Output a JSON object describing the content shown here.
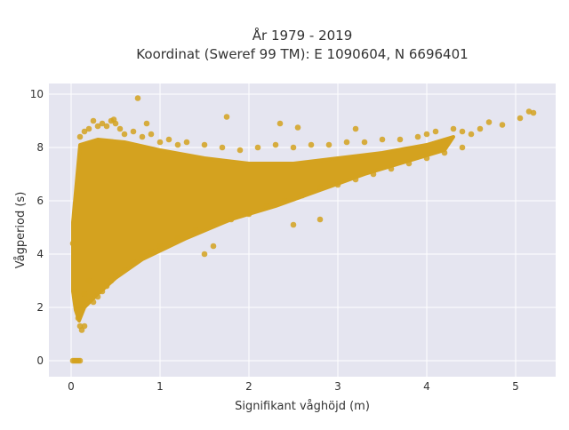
{
  "chart_data": {
    "type": "scatter",
    "title_lines": [
      "År 1979 - 2019",
      "Koordinat (Sweref 99 TM): E 1090604, N 6696401"
    ],
    "xlabel": "Signifikant våghöjd (m)",
    "ylabel": "Vågperiod (s)",
    "xlim": [
      -0.25,
      5.45
    ],
    "ylim": [
      -0.6,
      10.4
    ],
    "xticks": [
      0,
      1,
      2,
      3,
      4,
      5
    ],
    "yticks": [
      0,
      2,
      4,
      6,
      8,
      10
    ],
    "grid": true,
    "legend": "none",
    "marker_color": "#D4A21F",
    "plot_background": "#E5E5F0",
    "series": [
      {
        "points": [
          [
            0.02,
            0.0
          ],
          [
            0.04,
            0.0
          ],
          [
            0.06,
            0.0
          ],
          [
            0.08,
            0.0
          ],
          [
            0.1,
            0.0
          ],
          [
            0.02,
            4.4
          ],
          [
            0.04,
            2.6
          ],
          [
            0.06,
            2.2
          ],
          [
            0.08,
            1.6
          ],
          [
            0.1,
            1.3
          ],
          [
            0.12,
            1.15
          ],
          [
            0.15,
            1.3
          ],
          [
            0.05,
            5.4
          ],
          [
            0.1,
            8.4
          ],
          [
            0.15,
            8.6
          ],
          [
            0.2,
            8.7
          ],
          [
            0.25,
            9.0
          ],
          [
            0.3,
            8.8
          ],
          [
            0.35,
            8.9
          ],
          [
            0.4,
            8.8
          ],
          [
            0.45,
            9.0
          ],
          [
            0.5,
            8.9
          ],
          [
            0.55,
            8.7
          ],
          [
            0.6,
            8.5
          ],
          [
            0.7,
            8.6
          ],
          [
            0.8,
            8.4
          ],
          [
            0.9,
            8.5
          ],
          [
            1.0,
            8.2
          ],
          [
            1.1,
            8.3
          ],
          [
            1.2,
            8.1
          ],
          [
            1.3,
            8.2
          ],
          [
            1.5,
            8.1
          ],
          [
            1.7,
            8.0
          ],
          [
            1.9,
            7.9
          ],
          [
            2.1,
            8.0
          ],
          [
            2.3,
            8.1
          ],
          [
            2.5,
            8.0
          ],
          [
            2.7,
            8.1
          ],
          [
            2.9,
            8.1
          ],
          [
            3.1,
            8.2
          ],
          [
            3.3,
            8.2
          ],
          [
            3.5,
            8.3
          ],
          [
            3.7,
            8.3
          ],
          [
            3.9,
            8.4
          ],
          [
            4.0,
            8.5
          ],
          [
            4.1,
            8.6
          ],
          [
            4.3,
            8.7
          ],
          [
            0.48,
            9.05
          ],
          [
            0.75,
            9.85
          ],
          [
            0.85,
            8.9
          ],
          [
            1.75,
            9.15
          ],
          [
            2.35,
            8.9
          ],
          [
            2.55,
            8.75
          ],
          [
            3.2,
            8.7
          ],
          [
            4.4,
            8.6
          ],
          [
            4.5,
            8.5
          ],
          [
            4.6,
            8.7
          ],
          [
            4.7,
            8.95
          ],
          [
            4.85,
            8.85
          ],
          [
            5.05,
            9.1
          ],
          [
            5.15,
            9.35
          ],
          [
            5.2,
            9.3
          ],
          [
            0.12,
            2.0
          ],
          [
            0.15,
            2.5
          ],
          [
            0.2,
            3.0
          ],
          [
            0.25,
            2.2
          ],
          [
            0.3,
            2.4
          ],
          [
            0.35,
            2.6
          ],
          [
            0.4,
            2.8
          ],
          [
            0.45,
            3.0
          ],
          [
            0.5,
            3.2
          ],
          [
            0.6,
            3.4
          ],
          [
            0.7,
            3.7
          ],
          [
            0.8,
            3.9
          ],
          [
            0.9,
            4.1
          ],
          [
            1.0,
            4.3
          ],
          [
            1.2,
            4.6
          ],
          [
            1.4,
            4.9
          ],
          [
            1.6,
            5.1
          ],
          [
            1.8,
            5.3
          ],
          [
            2.0,
            5.5
          ],
          [
            2.2,
            5.8
          ],
          [
            2.4,
            6.0
          ],
          [
            2.6,
            6.2
          ],
          [
            2.8,
            6.5
          ],
          [
            3.0,
            6.6
          ],
          [
            3.2,
            6.8
          ],
          [
            3.4,
            7.0
          ],
          [
            3.6,
            7.2
          ],
          [
            3.8,
            7.4
          ],
          [
            4.0,
            7.6
          ],
          [
            4.2,
            7.8
          ],
          [
            4.4,
            8.0
          ],
          [
            1.5,
            4.0
          ],
          [
            1.6,
            4.3
          ],
          [
            2.5,
            5.1
          ],
          [
            2.8,
            5.3
          ]
        ]
      }
    ]
  }
}
